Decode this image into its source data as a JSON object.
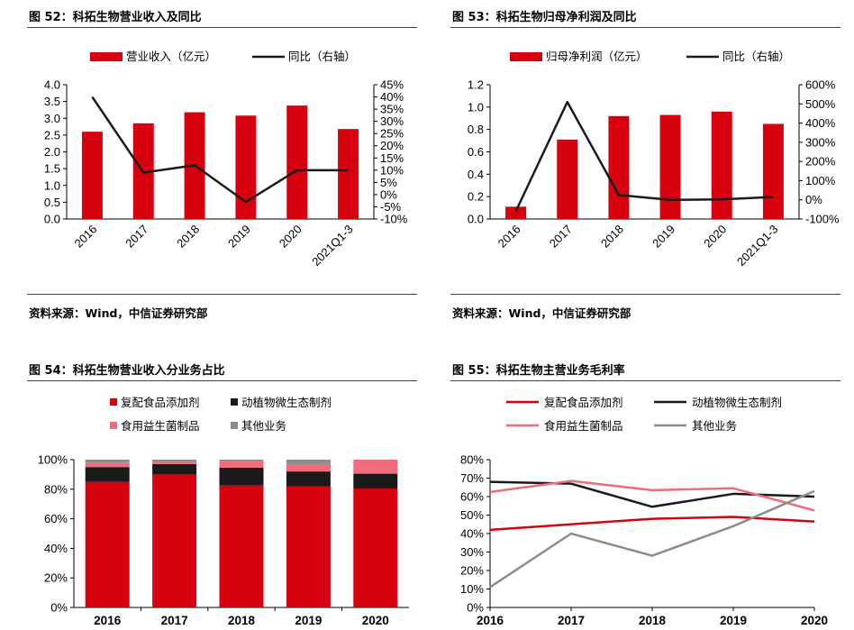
{
  "panels": [
    {
      "title": "图 52：科拓生物营业收入及同比",
      "source": "资料来源：Wind，中信证券研究部",
      "chart_data": {
        "type": "bar",
        "categories": [
          "2016",
          "2017",
          "2018",
          "2019",
          "2020",
          "2021Q1-3"
        ],
        "series": [
          {
            "name": "营业收入（亿元）",
            "kind": "bar",
            "axis": "left",
            "color": "#D7000F",
            "values": [
              2.6,
              2.85,
              3.18,
              3.08,
              3.38,
              2.68
            ]
          },
          {
            "name": "同比（右轴）",
            "kind": "line",
            "axis": "right",
            "color": "#1a1a1a",
            "values": [
              40.0,
              9.0,
              12.0,
              -3.0,
              10.0,
              10.0
            ]
          }
        ],
        "yticks_left": [
          "4.0",
          "3.5",
          "3.0",
          "2.5",
          "2.0",
          "1.5",
          "1.0",
          "0.5",
          "0.0"
        ],
        "yticks_right": [
          "45%",
          "40%",
          "35%",
          "30%",
          "25%",
          "20%",
          "15%",
          "10%",
          "5%",
          "0%",
          "-5%",
          "-10%"
        ],
        "ylim_left": [
          0,
          4
        ],
        "ylim_right": [
          -10,
          45
        ],
        "legend": "top"
      }
    },
    {
      "title": "图 53：科拓生物归母净利润及同比",
      "source": "资料来源：Wind，中信证券研究部",
      "chart_data": {
        "type": "bar",
        "categories": [
          "2016",
          "2017",
          "2018",
          "2019",
          "2020",
          "2021Q1-3"
        ],
        "series": [
          {
            "name": "归母净利润（亿元）",
            "kind": "bar",
            "axis": "left",
            "color": "#D7000F",
            "values": [
              0.11,
              0.71,
              0.92,
              0.93,
              0.96,
              0.85
            ]
          },
          {
            "name": "同比（右轴）",
            "kind": "line",
            "axis": "right",
            "color": "#1a1a1a",
            "values": [
              -60,
              510,
              25,
              0,
              2,
              15
            ]
          }
        ],
        "yticks_left": [
          "1.2",
          "1.0",
          "0.8",
          "0.6",
          "0.4",
          "0.2",
          "0.0"
        ],
        "yticks_right": [
          "600%",
          "500%",
          "400%",
          "300%",
          "200%",
          "100%",
          "0%",
          "-100%"
        ],
        "ylim_left": [
          0,
          1.2
        ],
        "ylim_right": [
          -100,
          600
        ],
        "legend": "top"
      }
    },
    {
      "title": "图 54：科拓生物营业收入分业务占比",
      "chart_data": {
        "type": "bar",
        "stacked": true,
        "categories": [
          "2016",
          "2017",
          "2018",
          "2019",
          "2020"
        ],
        "series": [
          {
            "name": "复配食品添加剂",
            "color": "#D7000F",
            "values": [
              85,
              90,
              82.5,
              82,
              80.5
            ]
          },
          {
            "name": "动植物微生态制剂",
            "color": "#1a1a1a",
            "values": [
              10,
              7,
              12,
              10,
              10
            ]
          },
          {
            "name": "食用益生菌制品",
            "color": "#F06C7A",
            "values": [
              3,
              1.5,
              4.5,
              5,
              9.5
            ]
          },
          {
            "name": "其他业务",
            "color": "#8C8C8C",
            "values": [
              2,
              1.5,
              1,
              3,
              0
            ]
          }
        ],
        "yticks": [
          "100%",
          "80%",
          "60%",
          "40%",
          "20%",
          "0%"
        ],
        "ylim": [
          0,
          100
        ],
        "legend": "top"
      }
    },
    {
      "title": "图 55：科拓生物主营业务毛利率",
      "chart_data": {
        "type": "line",
        "categories": [
          "2016",
          "2017",
          "2018",
          "2019",
          "2020"
        ],
        "series": [
          {
            "name": "复配食品添加剂",
            "color": "#D7000F",
            "values": [
              42,
              45,
              48,
              49,
              46.5
            ]
          },
          {
            "name": "动植物微生态制剂",
            "color": "#1a1a1a",
            "values": [
              68,
              67,
              54.5,
              61.5,
              60
            ]
          },
          {
            "name": "食用益生菌制品",
            "color": "#F06C7A",
            "values": [
              62.5,
              68.5,
              63.5,
              64.5,
              52.5
            ]
          },
          {
            "name": "其他业务",
            "color": "#8C8C8C",
            "values": [
              11,
              40,
              28,
              44,
              63
            ]
          }
        ],
        "yticks": [
          "80%",
          "70%",
          "60%",
          "50%",
          "40%",
          "30%",
          "20%",
          "10%",
          "0%"
        ],
        "ylim": [
          0,
          80
        ],
        "legend": "top"
      }
    }
  ]
}
